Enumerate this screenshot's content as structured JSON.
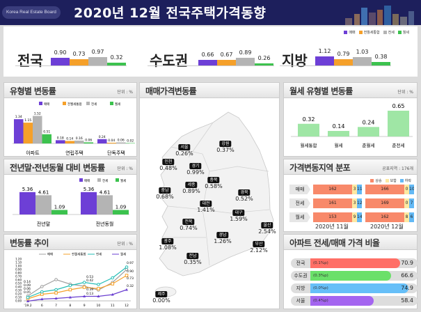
{
  "header": {
    "brand": "Korea Real Estate Board",
    "title": "2020년 12월  전국주택가격동향"
  },
  "colors": {
    "sale": "#6d3fd6",
    "rent_all": "#f5a02a",
    "jeonse": "#b4b4b4",
    "wolse": "#3cc24e",
    "header_bg": "#1d1f5c"
  },
  "legend": [
    "매매",
    "전월세통합",
    "전세",
    "월세"
  ],
  "summary": [
    {
      "region": "전국",
      "values": [
        0.9,
        0.73,
        0.97,
        0.32
      ],
      "labels": [
        "0.90",
        "0.73",
        "0.97",
        "0.32"
      ]
    },
    {
      "region": "수도권",
      "values": [
        0.66,
        0.67,
        0.89,
        0.26
      ],
      "labels": [
        "0.66",
        "0.67",
        "0.89",
        "0.26"
      ]
    },
    {
      "region": "지방",
      "values": [
        1.12,
        0.79,
        1.03,
        0.38
      ],
      "labels": [
        "1.12",
        "0.79",
        "1.03",
        "0.38"
      ]
    }
  ],
  "type_chart": {
    "title": "유형별 변동률",
    "unit": "단위 : %",
    "categories": [
      "아파트",
      "연립주택",
      "단독주택"
    ],
    "series": [
      {
        "name": "매매",
        "values": [
          1.34,
          0.18,
          0.24
        ]
      },
      {
        "name": "전월세통합",
        "values": [
          1.15,
          0.14,
          0.04
        ]
      },
      {
        "name": "전세",
        "values": [
          1.52,
          0.16,
          0.06
        ]
      },
      {
        "name": "월세",
        "values": [
          0.51,
          0.06,
          0.02
        ]
      }
    ]
  },
  "year_chart": {
    "title": "전년말·전년동월 대비 변동률",
    "unit": "단위 : %",
    "categories": [
      "전년말",
      "전년동월"
    ],
    "series": [
      {
        "name": "매매",
        "values": [
          5.36,
          5.36
        ]
      },
      {
        "name": "전세",
        "values": [
          4.61,
          4.61
        ]
      },
      {
        "name": "월세",
        "values": [
          1.09,
          1.09
        ]
      }
    ]
  },
  "chart_data": {
    "type": "line",
    "title": "변동률 추이",
    "unit": "단위 : %",
    "categories": [
      "'19.2",
      "6",
      "7",
      "8",
      "9",
      "10",
      "11",
      "12"
    ],
    "ylim": [
      0,
      1.2
    ],
    "yticks": [
      "0.00",
      "0.10",
      "0.20",
      "0.30",
      "0.40",
      "0.50",
      "0.60",
      "0.70",
      "0.80",
      "0.90",
      "1.00",
      "1.10",
      "1.20"
    ],
    "series": [
      {
        "name": "매매",
        "color": "#a0a0a0",
        "marker": "circle",
        "values": [
          0.14,
          0.41,
          0.61,
          0.48,
          0.42,
          0.31,
          0.53,
          0.9
        ]
      },
      {
        "name": "전월세통합",
        "color": "#f5a02a",
        "marker": "square",
        "values": [
          0.06,
          0.19,
          0.23,
          0.32,
          0.39,
          0.35,
          0.49,
          0.73
        ]
      },
      {
        "name": "전세",
        "color": "#22bdb5",
        "marker": "circle",
        "values": [
          0.1,
          0.26,
          0.32,
          0.44,
          0.53,
          0.47,
          0.66,
          0.97
        ]
      },
      {
        "name": "월세",
        "color": "#6a3fd0",
        "marker": "triangle",
        "values": [
          -0.01,
          0.05,
          0.07,
          0.1,
          0.13,
          0.13,
          0.18,
          0.32
        ]
      }
    ],
    "point_labels": [
      "0.14",
      "0.09",
      "0.06",
      "0.05",
      "0.53",
      "0.42",
      "0.39",
      "0.13",
      "0.97",
      "0.90",
      "0.73",
      "0.32"
    ]
  },
  "map": {
    "title": "매매가격변동률",
    "regions": [
      {
        "name": "서울",
        "value": "0.26%"
      },
      {
        "name": "강원",
        "value": "0.37%"
      },
      {
        "name": "인천",
        "value": "0.48%"
      },
      {
        "name": "경기",
        "value": "0.99%"
      },
      {
        "name": "충북",
        "value": "0.58%"
      },
      {
        "name": "세종",
        "value": "0.89%"
      },
      {
        "name": "충남",
        "value": "0.68%"
      },
      {
        "name": "경북",
        "value": "0.52%"
      },
      {
        "name": "대전",
        "value": "1.41%"
      },
      {
        "name": "대구",
        "value": "1.59%"
      },
      {
        "name": "전북",
        "value": "0.74%"
      },
      {
        "name": "울산",
        "value": "2.54%"
      },
      {
        "name": "경남",
        "value": "1.26%"
      },
      {
        "name": "광주",
        "value": "1.08%"
      },
      {
        "name": "부산",
        "value": "2.12%"
      },
      {
        "name": "전남",
        "value": "0.35%"
      },
      {
        "name": "제주",
        "value": "0.00%"
      }
    ]
  },
  "wolse_chart": {
    "title": "월세 유형별 변동률",
    "unit": "단위 : %",
    "categories": [
      "월세통합",
      "월세",
      "준월세",
      "준전세"
    ],
    "values": [
      0.32,
      0.14,
      0.24,
      0.65
    ],
    "color": "#9fe6a5"
  },
  "distribution": {
    "title": "가격변동지역 분포",
    "unit": "공표지역 : 176개",
    "legend": [
      "상승",
      "보합",
      "하락"
    ],
    "colors": [
      "#f8896a",
      "#fde9a2",
      "#63b9f5"
    ],
    "rows": [
      "매매",
      "전세",
      "월세"
    ],
    "periods": [
      "2020년 11월",
      "2020년 12월"
    ],
    "data": [
      [
        [
          162,
          3,
          11
        ],
        [
          166,
          0,
          10
        ]
      ],
      [
        [
          161,
          3,
          12
        ],
        [
          169,
          0,
          7
        ]
      ],
      [
        [
          153,
          9,
          14
        ],
        [
          162,
          8,
          6
        ]
      ]
    ]
  },
  "ratio": {
    "title": "아파트 전세/매매 가격 비율",
    "items": [
      {
        "name": "전국",
        "change": "(0.1%p)",
        "value": 70.9,
        "label": "70.9",
        "color": "#ff6f66"
      },
      {
        "name": "수도권",
        "change": "(0.3%p)",
        "value": 66.6,
        "label": "66.6",
        "color": "#6be06a"
      },
      {
        "name": "지방",
        "change": "(0.0%p)",
        "value": 74.9,
        "label": "74.9",
        "color": "#66bff8"
      },
      {
        "name": "서울",
        "change": "(0.4%p)",
        "value": 58.4,
        "label": "58.4",
        "color": "#a465f0"
      }
    ]
  }
}
